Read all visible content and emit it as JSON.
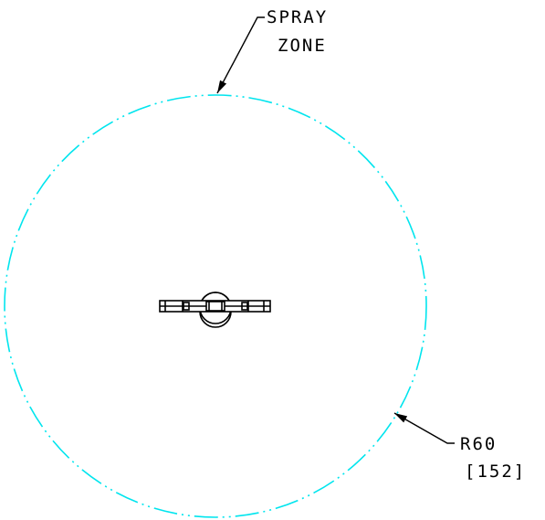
{
  "labels": {
    "spray_zone_line1": "SPRAY",
    "spray_zone_line2": "ZONE",
    "radius_imperial": "R60",
    "radius_metric": "[152]"
  },
  "colors": {
    "spray_zone_circle": "#00e5ee",
    "linework": "#000000",
    "background": "#ffffff"
  },
  "icons": {
    "spray_zone_circle": "spray-zone-circle-icon",
    "nozzle_assembly": "sprinkler-nozzle-icon",
    "leader_arrow": "leader-arrow-icon"
  }
}
